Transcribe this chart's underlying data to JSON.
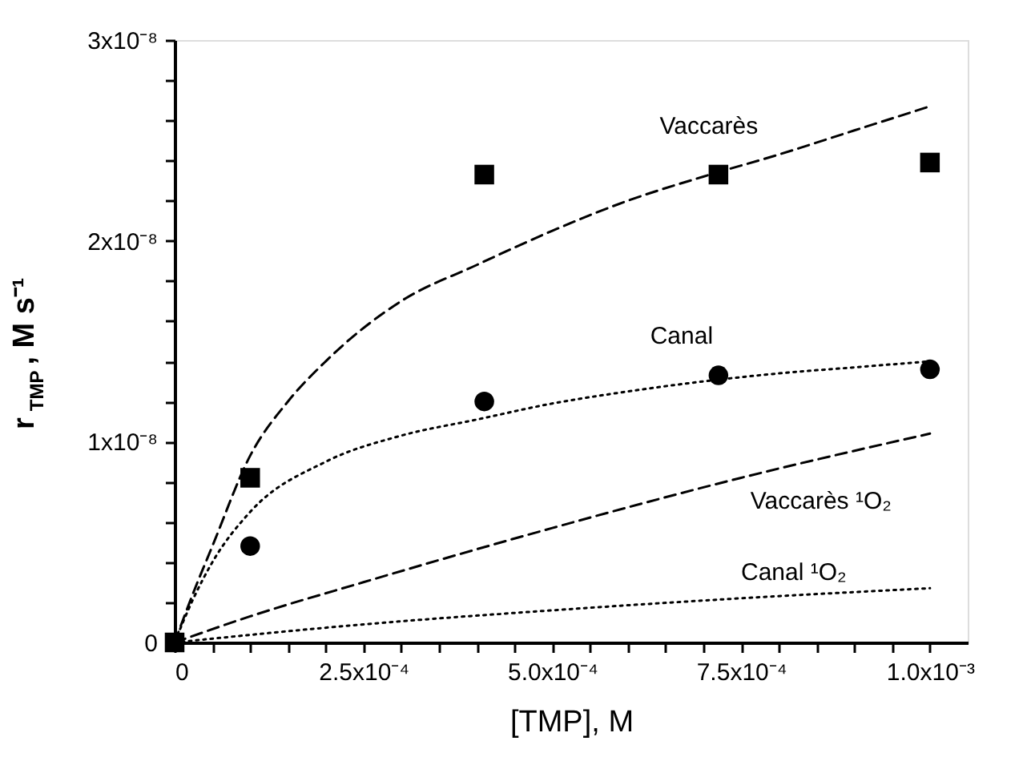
{
  "chart_data": {
    "type": "scatter",
    "xlabel": "[TMP], M",
    "ylabel": "r$_{TMP}$, M s⁻¹",
    "xlim": [
      0,
      0.00105
    ],
    "ylim": [
      0,
      3e-08
    ],
    "xticks": [
      0,
      {
        "value": 5e-05,
        "label": null
      },
      {
        "value": 0.0001,
        "label": null
      },
      {
        "value": 0.00015,
        "label": null
      },
      {
        "value": 0.0002,
        "label": null
      },
      {
        "value": 0.00025,
        "label": "2.5x10⁻⁴"
      },
      {
        "value": 0.0003,
        "label": null
      },
      {
        "value": 0.00035,
        "label": null
      },
      {
        "value": 0.0004,
        "label": null
      },
      {
        "value": 0.00045,
        "label": null
      },
      {
        "value": 0.0005,
        "label": "5.0x10⁻⁴"
      },
      {
        "value": 0.00055,
        "label": null
      },
      {
        "value": 0.0006,
        "label": null
      },
      {
        "value": 0.00065,
        "label": null
      },
      {
        "value": 0.0007,
        "label": null
      },
      {
        "value": 0.00075,
        "label": "7.5x10⁻⁴"
      },
      {
        "value": 0.0008,
        "label": null
      },
      {
        "value": 0.00085,
        "label": null
      },
      {
        "value": 0.0009,
        "label": null
      },
      {
        "value": 0.00095,
        "label": null
      },
      {
        "value": 0.001,
        "label": "1.0x10⁻³"
      }
    ],
    "yticks": [
      0,
      {
        "value": 2e-09,
        "label": null
      },
      {
        "value": 4e-09,
        "label": null
      },
      {
        "value": 6e-09,
        "label": null
      },
      {
        "value": 8e-09,
        "label": null
      },
      {
        "value": 1e-08,
        "label": "1x10⁻⁸"
      },
      {
        "value": 1.2e-08,
        "label": null
      },
      {
        "value": 1.4e-08,
        "label": null
      },
      {
        "value": 1.6e-08,
        "label": null
      },
      {
        "value": 1.8e-08,
        "label": null
      },
      {
        "value": 2e-08,
        "label": "2x10⁻⁸"
      },
      {
        "value": 2.2e-08,
        "label": null
      },
      {
        "value": 2.4e-08,
        "label": null
      },
      {
        "value": 2.6e-08,
        "label": null
      },
      {
        "value": 2.8e-08,
        "label": null
      },
      {
        "value": 3e-08,
        "label": "3x10⁻⁸"
      }
    ],
    "grid": false,
    "series": [
      {
        "name": "Vaccarès",
        "type": "line",
        "line_style": "dashed",
        "color": "#000000",
        "x": [
          0,
          2.5e-05,
          5e-05,
          0.0001,
          0.00015,
          0.0002,
          0.0003,
          0.0004,
          0.0005,
          0.0006,
          0.0007,
          0.0008,
          0.0009,
          0.001
        ],
        "values": [
          0,
          2.5e-09,
          4.8e-09,
          9.3e-09,
          1.2e-08,
          1.4e-08,
          1.7e-08,
          1.88e-08,
          2.05e-08,
          2.2e-08,
          2.32e-08,
          2.43e-08,
          2.55e-08,
          2.67e-08
        ]
      },
      {
        "name": "Canal",
        "type": "line",
        "line_style": "dotted",
        "color": "#000000",
        "x": [
          0,
          2.5e-05,
          5e-05,
          0.0001,
          0.0002,
          0.0003,
          0.0004,
          0.0005,
          0.0006,
          0.0007,
          0.0008,
          0.0009,
          0.001
        ],
        "values": [
          0,
          2.2e-09,
          4e-09,
          6.5e-09,
          9e-09,
          1.03e-08,
          1.11e-08,
          1.19e-08,
          1.25e-08,
          1.3e-08,
          1.34e-08,
          1.37e-08,
          1.4e-08
        ]
      },
      {
        "name": "Vaccarès ¹O₂",
        "type": "line",
        "line_style": "dashed",
        "color": "#000000",
        "x": [
          0,
          0.0001,
          0.00025,
          0.0005,
          0.00075,
          0.001
        ],
        "values": [
          0,
          1.3e-09,
          3e-09,
          5.7e-09,
          8.2e-09,
          1.04e-08
        ]
      },
      {
        "name": "Canal ¹O₂",
        "type": "line",
        "line_style": "dotted",
        "color": "#000000",
        "x": [
          0,
          0.00025,
          0.0005,
          0.00075,
          0.001
        ],
        "values": [
          0,
          9e-10,
          1.6e-09,
          2.2e-09,
          2.7e-09
        ]
      },
      {
        "marker": "circle",
        "color": "#000000",
        "x": [
          0.0001,
          0.00041,
          0.00072,
          0.001
        ],
        "values": [
          4.8e-09,
          1.2e-08,
          1.33e-08,
          1.36e-08
        ]
      },
      {
        "marker": "square",
        "color": "#000000",
        "x": [
          0,
          0.0001,
          0.00041,
          0.00072,
          0.001
        ],
        "values": [
          0,
          8.2e-09,
          2.33e-08,
          2.33e-08,
          2.39e-08
        ]
      }
    ]
  }
}
